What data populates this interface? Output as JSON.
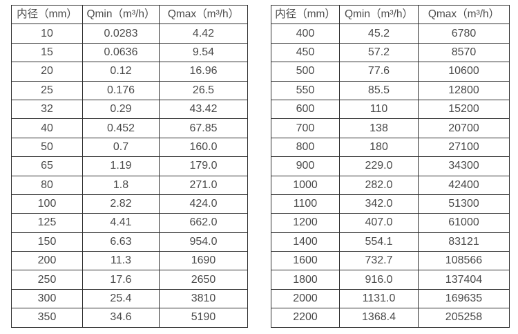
{
  "colors": {
    "background": "#ffffff",
    "border": "#2e2e2e",
    "text": "#4a4a4a"
  },
  "tables": [
    {
      "name": "flow-range-table-small-diameters",
      "headers": [
        "内径（mm）",
        "Qmin（m³/h）",
        "Qmax（m³/h）"
      ],
      "rows": [
        [
          "10",
          "0.0283",
          "4.42"
        ],
        [
          "15",
          "0.0636",
          "9.54"
        ],
        [
          "20",
          "0.12",
          "16.96"
        ],
        [
          "25",
          "0.176",
          "26.5"
        ],
        [
          "32",
          "0.29",
          "43.42"
        ],
        [
          "40",
          "0.452",
          "67.85"
        ],
        [
          "50",
          "0.7",
          "160.0"
        ],
        [
          "65",
          "1.19",
          "179.0"
        ],
        [
          "80",
          "1.8",
          "271.0"
        ],
        [
          "100",
          "2.82",
          "424.0"
        ],
        [
          "125",
          "4.41",
          "662.0"
        ],
        [
          "150",
          "6.63",
          "954.0"
        ],
        [
          "200",
          "11.3",
          "1690"
        ],
        [
          "250",
          "17.6",
          "2650"
        ],
        [
          "300",
          "25.4",
          "3810"
        ],
        [
          "350",
          "34.6",
          "5190"
        ]
      ]
    },
    {
      "name": "flow-range-table-large-diameters",
      "headers": [
        "内径（mm）",
        "Qmin（m³/h）",
        "Qmax（m³/h）"
      ],
      "rows": [
        [
          "400",
          "45.2",
          "6780"
        ],
        [
          "450",
          "57.2",
          "8570"
        ],
        [
          "500",
          "77.6",
          "10600"
        ],
        [
          "550",
          "85.5",
          "12800"
        ],
        [
          "600",
          "110",
          "15200"
        ],
        [
          "700",
          "138",
          "20700"
        ],
        [
          "800",
          "180",
          "27100"
        ],
        [
          "900",
          "229.0",
          "34300"
        ],
        [
          "1000",
          "282.0",
          "42400"
        ],
        [
          "1100",
          "342.0",
          "51300"
        ],
        [
          "1200",
          "407.0",
          "61000"
        ],
        [
          "1400",
          "554.1",
          "83121"
        ],
        [
          "1600",
          "732.7",
          "108566"
        ],
        [
          "1800",
          "916.0",
          "137404"
        ],
        [
          "2000",
          "1131.0",
          "169635"
        ],
        [
          "2200",
          "1368.4",
          "205258"
        ]
      ]
    }
  ]
}
